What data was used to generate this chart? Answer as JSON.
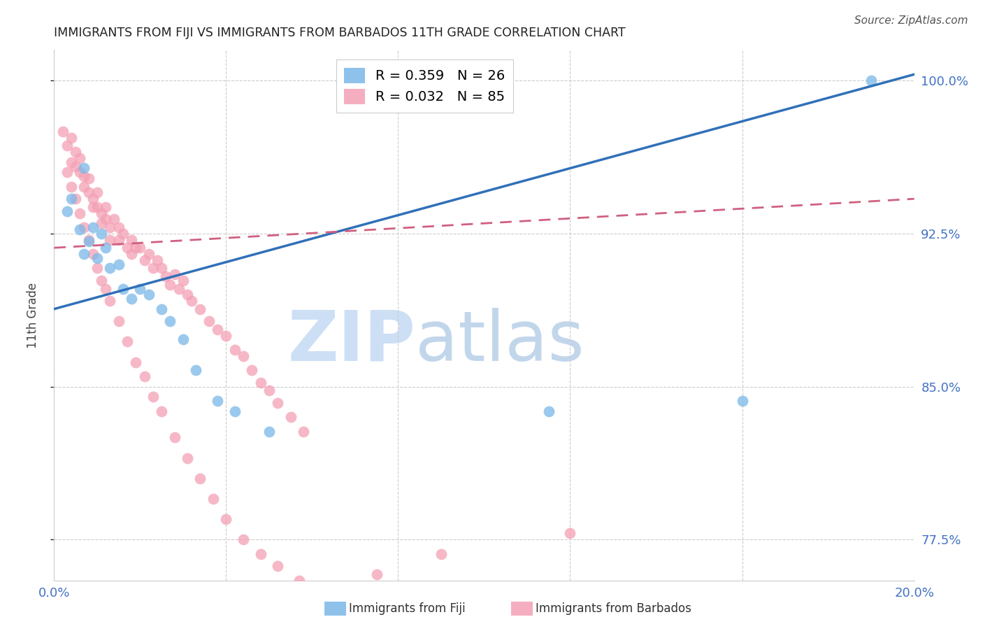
{
  "title": "IMMIGRANTS FROM FIJI VS IMMIGRANTS FROM BARBADOS 11TH GRADE CORRELATION CHART",
  "source": "Source: ZipAtlas.com",
  "ylabel": "11th Grade",
  "xlim": [
    0.0,
    0.2
  ],
  "ylim": [
    0.755,
    1.015
  ],
  "yticks": [
    0.775,
    0.85,
    0.925,
    1.0
  ],
  "ytick_labels": [
    "77.5%",
    "85.0%",
    "92.5%",
    "100.0%"
  ],
  "xticks": [
    0.0,
    0.04,
    0.08,
    0.12,
    0.16,
    0.2
  ],
  "fiji_color": "#7ab8e8",
  "barbados_color": "#f4a0b5",
  "fiji_line_color": "#3070b8",
  "barbados_line_color": "#d06080",
  "legend_fiji_label": "R = 0.359   N = 26",
  "legend_barbados_label": "R = 0.032   N = 85",
  "fiji_label": "Immigrants from Fiji",
  "barbados_label": "Immigrants from Barbados",
  "fiji_scatter_x": [
    0.003,
    0.004,
    0.006,
    0.007,
    0.007,
    0.008,
    0.009,
    0.01,
    0.011,
    0.012,
    0.013,
    0.015,
    0.016,
    0.018,
    0.02,
    0.022,
    0.025,
    0.027,
    0.03,
    0.033,
    0.038,
    0.042,
    0.05,
    0.115,
    0.16,
    0.19
  ],
  "fiji_scatter_y": [
    0.936,
    0.942,
    0.927,
    0.957,
    0.915,
    0.921,
    0.928,
    0.913,
    0.925,
    0.918,
    0.908,
    0.91,
    0.898,
    0.893,
    0.898,
    0.895,
    0.888,
    0.882,
    0.873,
    0.858,
    0.843,
    0.838,
    0.828,
    0.838,
    0.843,
    1.0
  ],
  "barbados_scatter_x": [
    0.002,
    0.003,
    0.004,
    0.004,
    0.005,
    0.005,
    0.006,
    0.006,
    0.007,
    0.007,
    0.008,
    0.008,
    0.009,
    0.009,
    0.01,
    0.01,
    0.011,
    0.011,
    0.012,
    0.012,
    0.013,
    0.013,
    0.014,
    0.015,
    0.015,
    0.016,
    0.017,
    0.018,
    0.018,
    0.019,
    0.02,
    0.021,
    0.022,
    0.023,
    0.024,
    0.025,
    0.026,
    0.027,
    0.028,
    0.029,
    0.03,
    0.031,
    0.032,
    0.034,
    0.036,
    0.038,
    0.04,
    0.042,
    0.044,
    0.046,
    0.048,
    0.05,
    0.052,
    0.055,
    0.058,
    0.003,
    0.004,
    0.005,
    0.006,
    0.007,
    0.008,
    0.009,
    0.01,
    0.011,
    0.012,
    0.013,
    0.015,
    0.017,
    0.019,
    0.021,
    0.023,
    0.025,
    0.028,
    0.031,
    0.034,
    0.037,
    0.04,
    0.044,
    0.048,
    0.052,
    0.057,
    0.062,
    0.075,
    0.09,
    0.12
  ],
  "barbados_scatter_y": [
    0.975,
    0.968,
    0.96,
    0.972,
    0.965,
    0.958,
    0.962,
    0.955,
    0.953,
    0.948,
    0.952,
    0.945,
    0.942,
    0.938,
    0.945,
    0.938,
    0.935,
    0.93,
    0.938,
    0.932,
    0.928,
    0.922,
    0.932,
    0.928,
    0.922,
    0.925,
    0.918,
    0.922,
    0.915,
    0.918,
    0.918,
    0.912,
    0.915,
    0.908,
    0.912,
    0.908,
    0.904,
    0.9,
    0.905,
    0.898,
    0.902,
    0.895,
    0.892,
    0.888,
    0.882,
    0.878,
    0.875,
    0.868,
    0.865,
    0.858,
    0.852,
    0.848,
    0.842,
    0.835,
    0.828,
    0.955,
    0.948,
    0.942,
    0.935,
    0.928,
    0.922,
    0.915,
    0.908,
    0.902,
    0.898,
    0.892,
    0.882,
    0.872,
    0.862,
    0.855,
    0.845,
    0.838,
    0.825,
    0.815,
    0.805,
    0.795,
    0.785,
    0.775,
    0.768,
    0.762,
    0.755,
    0.748,
    0.758,
    0.768,
    0.778
  ],
  "fiji_trend_x": [
    0.0,
    0.2
  ],
  "fiji_trend_y": [
    0.888,
    1.003
  ],
  "barbados_trend_x": [
    0.0,
    0.2
  ],
  "barbados_trend_y": [
    0.918,
    0.942
  ],
  "watermark_zip": "ZIP",
  "watermark_atlas": "atlas",
  "background_color": "#ffffff",
  "grid_color": "#cccccc",
  "axis_color": "#4472c4",
  "title_color": "#222222",
  "watermark_color": "#ccdff5"
}
